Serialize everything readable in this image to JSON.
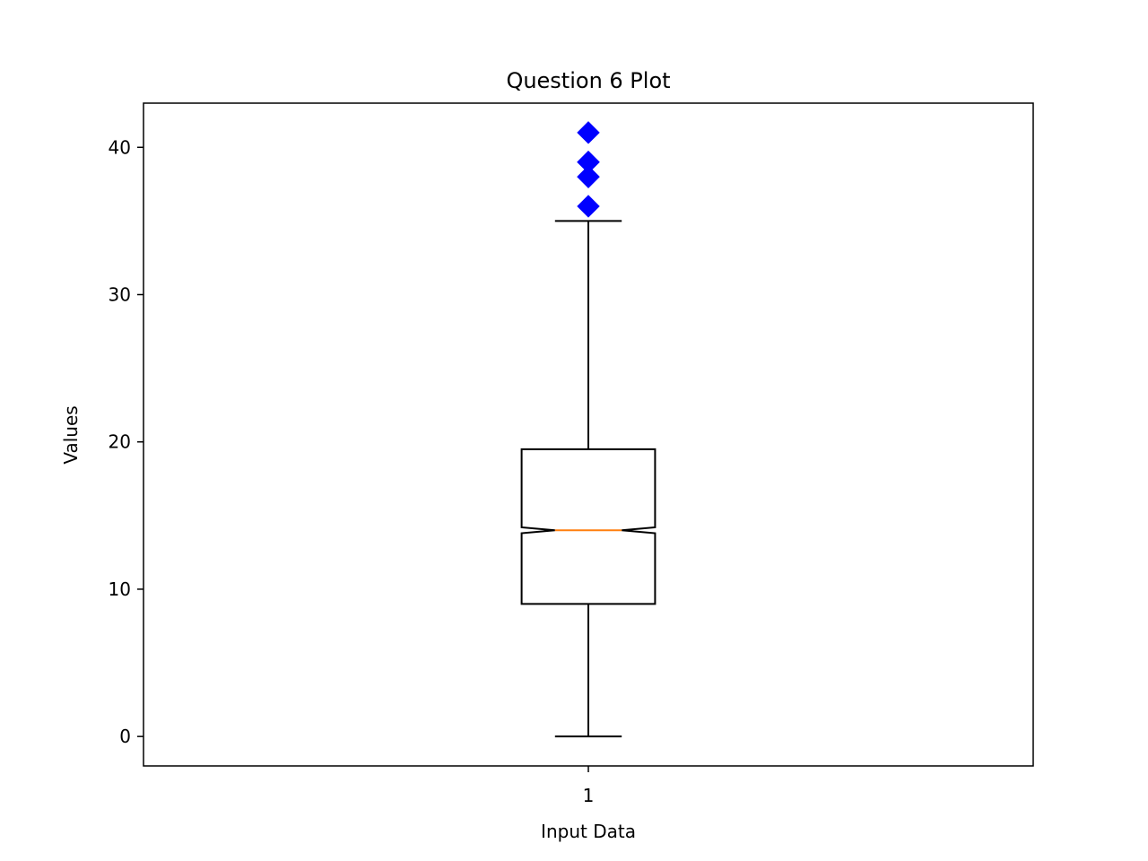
{
  "chart_data": {
    "type": "box",
    "title": "Question 6 Plot",
    "xlabel": "Input Data",
    "ylabel": "Values",
    "categories": [
      "1"
    ],
    "ylim": [
      -2,
      43
    ],
    "yticks": [
      0,
      10,
      20,
      30,
      40
    ],
    "notched": true,
    "boxes": [
      {
        "category": "1",
        "whisker_low": 0,
        "q1": 9,
        "median": 14,
        "q3": 19.5,
        "whisker_high": 35,
        "notch_low": 13.8,
        "notch_high": 14.2,
        "outliers": [
          36,
          38,
          38,
          39,
          39,
          41
        ]
      }
    ],
    "grid": false,
    "colors": {
      "box": "#000000",
      "median": "#ff7f0e",
      "outlier": "#0000ff"
    }
  }
}
